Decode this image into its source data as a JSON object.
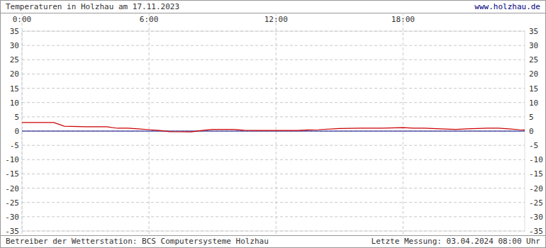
{
  "chart_data": {
    "type": "line",
    "title": "Temperaturen in Holzhau am 17.11.2023",
    "annotations": [
      "www.holzhau.de",
      "Betreiber der Wetterstation: BCS Computersysteme Holzhau",
      "Letzte Messung: 03.04.2024 08:00 Uhr"
    ],
    "x": [
      0,
      1,
      1.5,
      2,
      3,
      4,
      4.5,
      5,
      5.5,
      6,
      6.5,
      7,
      8,
      8.5,
      9,
      10,
      10.5,
      11,
      12,
      13,
      13.5,
      14,
      15,
      16,
      17,
      18,
      18.5,
      19,
      20,
      20.5,
      21,
      22,
      22.5,
      23,
      23.5,
      23.75
    ],
    "series": [
      {
        "color": "#cc0000",
        "values": [
          3,
          3,
          3,
          1.7,
          1.5,
          1.5,
          1.0,
          1.0,
          0.8,
          0.5,
          0.2,
          -0.2,
          -0.3,
          0.2,
          0.6,
          0.6,
          0.3,
          0.2,
          0.2,
          0.2,
          0.4,
          0.5,
          0.9,
          1.0,
          1.0,
          1.2,
          1.0,
          1.0,
          0.7,
          0.6,
          0.8,
          1.0,
          1.0,
          0.8,
          0.5,
          0.4
        ]
      },
      {
        "color": "#000080",
        "values": [
          0,
          0,
          0,
          0,
          0,
          0,
          0,
          0,
          0,
          0,
          0,
          0,
          0,
          0,
          0,
          0,
          0,
          0,
          0,
          0,
          0,
          0,
          0,
          0,
          0,
          0,
          0,
          0,
          0,
          0,
          0,
          0,
          0,
          0,
          0,
          0
        ]
      }
    ],
    "xlim": [
      0,
      23.75
    ],
    "xticks": [
      {
        "value": 0,
        "label": "0:00"
      },
      {
        "value": 6,
        "label": "6:00"
      },
      {
        "value": 12,
        "label": "12:00"
      },
      {
        "value": 18,
        "label": "18:00"
      }
    ],
    "ylim": [
      -35,
      35
    ],
    "yticks": [
      -35,
      -30,
      -25,
      -20,
      -15,
      -10,
      -5,
      0,
      5,
      10,
      15,
      20,
      25,
      30,
      35
    ],
    "grid": true
  }
}
